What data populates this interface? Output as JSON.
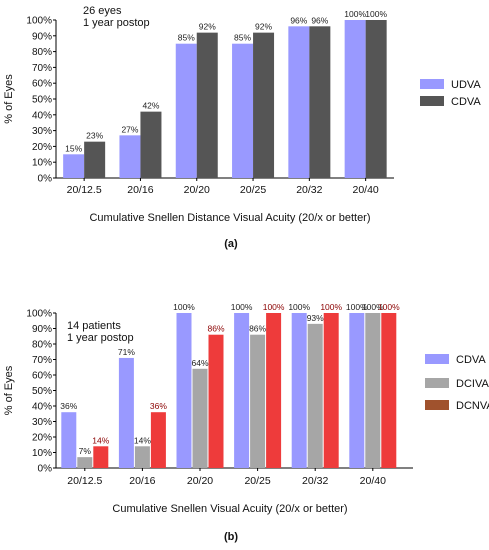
{
  "chart_data": [
    {
      "type": "bar",
      "panel": "(a)",
      "annotation": [
        "26 eyes",
        "1 year postop"
      ],
      "xlabel": "Cumulative Snellen Distance Visual  Acuity (20/x or better)",
      "ylabel": "% of Eyes",
      "ylim": [
        0,
        100
      ],
      "yticks": [
        "0%",
        "10%",
        "20%",
        "30%",
        "40%",
        "50%",
        "60%",
        "70%",
        "80%",
        "90%",
        "100%"
      ],
      "categories": [
        "20/12.5",
        "20/16",
        "20/20",
        "20/25",
        "20/32",
        "20/40"
      ],
      "legend_position": "right",
      "grid": false,
      "series": [
        {
          "name": "UDVA",
          "color": "#9999ff",
          "label_color": "#222222",
          "values": [
            15,
            27,
            85,
            85,
            96,
            100
          ],
          "labels": [
            "15%",
            "27%",
            "85%",
            "85%",
            "96%",
            "100%"
          ]
        },
        {
          "name": "CDVA",
          "color": "#555555",
          "label_color": "#222222",
          "values": [
            23,
            42,
            92,
            92,
            96,
            100
          ],
          "labels": [
            "23%",
            "42%",
            "92%",
            "92%",
            "96%",
            "100%"
          ]
        }
      ]
    },
    {
      "type": "bar",
      "panel": "(b)",
      "annotation": [
        "14 patients",
        "1 year postop"
      ],
      "xlabel": "Cumulative Snellen Visual  Acuity (20/x or better)",
      "ylabel": "% of Eyes",
      "ylim": [
        0,
        100
      ],
      "yticks": [
        "0%",
        "10%",
        "20%",
        "30%",
        "40%",
        "50%",
        "60%",
        "70%",
        "80%",
        "90%",
        "100%"
      ],
      "categories": [
        "20/12.5",
        "20/16",
        "20/20",
        "20/25",
        "20/32",
        "20/40"
      ],
      "legend_position": "right",
      "grid": false,
      "series": [
        {
          "name": "CDVA",
          "color": "#9999ff",
          "label_color": "#222222",
          "values": [
            36,
            71,
            100,
            100,
            100,
            100
          ],
          "labels": [
            "36%",
            "71%",
            "100%",
            "100%",
            "100%",
            "100%"
          ]
        },
        {
          "name": "DCIVA",
          "color": "#a6a6a6",
          "label_color": "#222222",
          "values": [
            7,
            14,
            64,
            86,
            93,
            100
          ],
          "labels": [
            "7%",
            "14%",
            "64%",
            "86%",
            "93%",
            "100%"
          ]
        },
        {
          "name": "DCNVA",
          "color": "#ee3b3b",
          "legend_color": "#a0522d",
          "label_color": "#8b0000",
          "values": [
            14,
            36,
            86,
            100,
            100,
            100
          ],
          "labels": [
            "14%",
            "36%",
            "86%",
            "100%",
            "100%",
            "100%"
          ]
        }
      ]
    }
  ]
}
